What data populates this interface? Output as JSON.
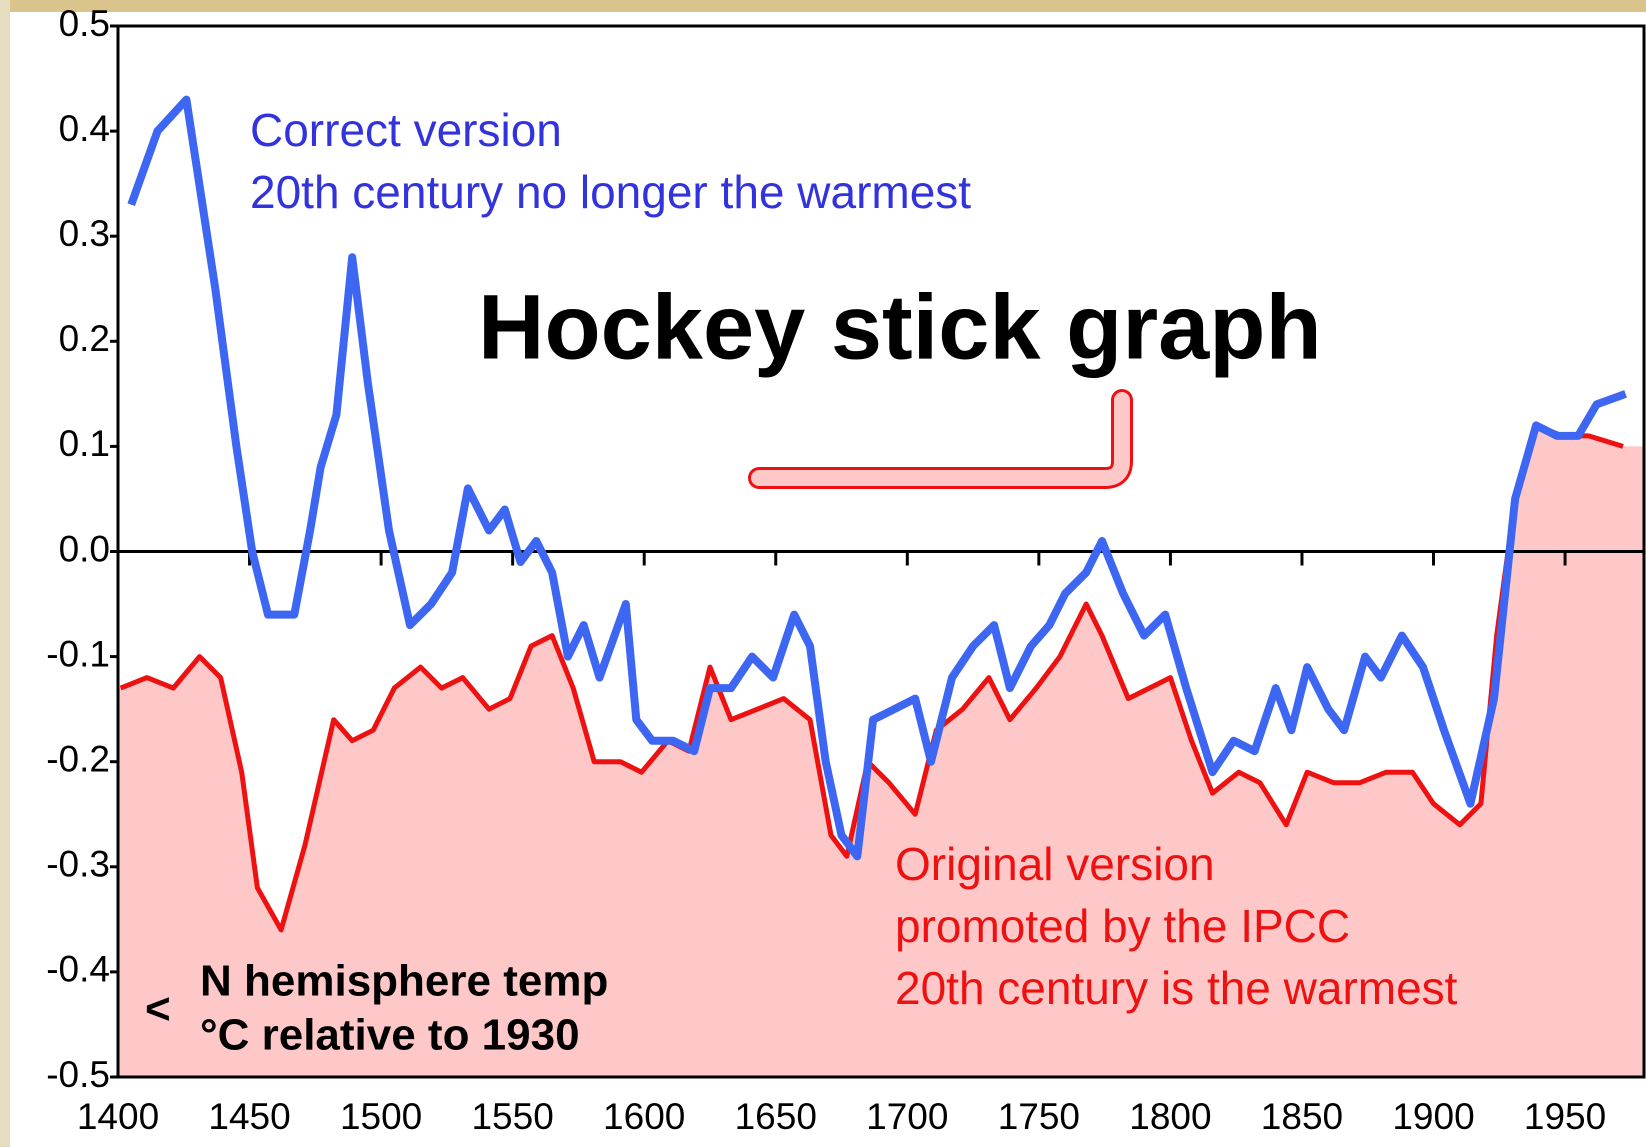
{
  "chart_data": {
    "type": "line",
    "title": "Hockey stick graph",
    "xlim": [
      1400,
      1980
    ],
    "xticks": [
      1400,
      1450,
      1500,
      1550,
      1600,
      1650,
      1700,
      1750,
      1800,
      1850,
      1900,
      1950
    ],
    "ylim": [
      -0.5,
      0.5
    ],
    "yticks": [
      0.5,
      0.4,
      0.3,
      0.2,
      0.1,
      {
        "value": 0,
        "label": "0.0"
      },
      -0.1,
      -0.2,
      -0.3,
      -0.4,
      -0.5
    ],
    "fill_color": "#ffc8c8",
    "series": [
      {
        "name": "Correct version",
        "color": "#3d67f2",
        "x": [
          1405,
          1415,
          1426,
          1437,
          1445,
          1451,
          1457,
          1467,
          1473,
          1477,
          1483,
          1489,
          1495,
          1503,
          1511,
          1519,
          1527,
          1533,
          1541,
          1547,
          1553,
          1559,
          1565,
          1571,
          1577,
          1583,
          1593,
          1597,
          1603,
          1611,
          1619,
          1625,
          1633,
          1641,
          1649,
          1657,
          1663,
          1669,
          1675,
          1681,
          1687,
          1695,
          1703,
          1709,
          1717,
          1725,
          1733,
          1739,
          1747,
          1754,
          1760,
          1768,
          1774,
          1782,
          1790,
          1798,
          1806,
          1816,
          1824,
          1832,
          1840,
          1846,
          1852,
          1860,
          1866,
          1874,
          1880,
          1888,
          1896,
          1904,
          1914,
          1923,
          1931,
          1939,
          1947,
          1955,
          1962,
          1973
        ],
        "values": [
          0.33,
          0.4,
          0.43,
          0.25,
          0.1,
          0.0,
          -0.06,
          -0.06,
          0.02,
          0.08,
          0.13,
          0.28,
          0.16,
          0.02,
          -0.07,
          -0.05,
          -0.02,
          0.06,
          0.02,
          0.04,
          -0.01,
          0.01,
          -0.02,
          -0.1,
          -0.07,
          -0.12,
          -0.05,
          -0.16,
          -0.18,
          -0.18,
          -0.19,
          -0.13,
          -0.13,
          -0.1,
          -0.12,
          -0.06,
          -0.09,
          -0.2,
          -0.27,
          -0.29,
          -0.16,
          -0.15,
          -0.14,
          -0.2,
          -0.12,
          -0.09,
          -0.07,
          -0.13,
          -0.09,
          -0.07,
          -0.04,
          -0.02,
          0.01,
          -0.04,
          -0.08,
          -0.06,
          -0.13,
          -0.21,
          -0.18,
          -0.19,
          -0.13,
          -0.17,
          -0.11,
          -0.15,
          -0.17,
          -0.1,
          -0.12,
          -0.08,
          -0.11,
          -0.17,
          -0.24,
          -0.14,
          0.05,
          0.12,
          0.11,
          0.11,
          0.14,
          0.15
        ]
      },
      {
        "name": "Original version",
        "color": "#ee1111",
        "x": [
          1401,
          1411,
          1421,
          1431,
          1439,
          1447,
          1453,
          1462,
          1471,
          1482,
          1489,
          1497,
          1505,
          1515,
          1523,
          1531,
          1541,
          1549,
          1557,
          1565,
          1573,
          1581,
          1591,
          1599,
          1609,
          1617,
          1625,
          1633,
          1643,
          1653,
          1663,
          1671,
          1677,
          1685,
          1693,
          1703,
          1711,
          1721,
          1731,
          1739,
          1749,
          1758,
          1768,
          1774,
          1784,
          1792,
          1800,
          1808,
          1816,
          1826,
          1834,
          1844,
          1852,
          1862,
          1872,
          1882,
          1892,
          1900,
          1910,
          1918,
          1924,
          1931,
          1939,
          1949,
          1959,
          1972
        ],
        "values": [
          -0.13,
          -0.12,
          -0.13,
          -0.1,
          -0.12,
          -0.21,
          -0.32,
          -0.36,
          -0.28,
          -0.16,
          -0.18,
          -0.17,
          -0.13,
          -0.11,
          -0.13,
          -0.12,
          -0.15,
          -0.14,
          -0.09,
          -0.08,
          -0.13,
          -0.2,
          -0.2,
          -0.21,
          -0.18,
          -0.19,
          -0.11,
          -0.16,
          -0.15,
          -0.14,
          -0.16,
          -0.27,
          -0.29,
          -0.2,
          -0.22,
          -0.25,
          -0.17,
          -0.15,
          -0.12,
          -0.16,
          -0.13,
          -0.1,
          -0.05,
          -0.08,
          -0.14,
          -0.13,
          -0.12,
          -0.18,
          -0.23,
          -0.21,
          -0.22,
          -0.26,
          -0.21,
          -0.22,
          -0.22,
          -0.21,
          -0.21,
          -0.24,
          -0.26,
          -0.24,
          -0.08,
          0.05,
          0.12,
          0.11,
          0.11,
          0.1
        ]
      }
    ],
    "annotations": [
      "20th century no longer the warmest",
      "promoted by the IPCC",
      "20th century is the warmest",
      "<",
      "N hemisphere temp",
      "°C relative to 1930"
    ]
  }
}
